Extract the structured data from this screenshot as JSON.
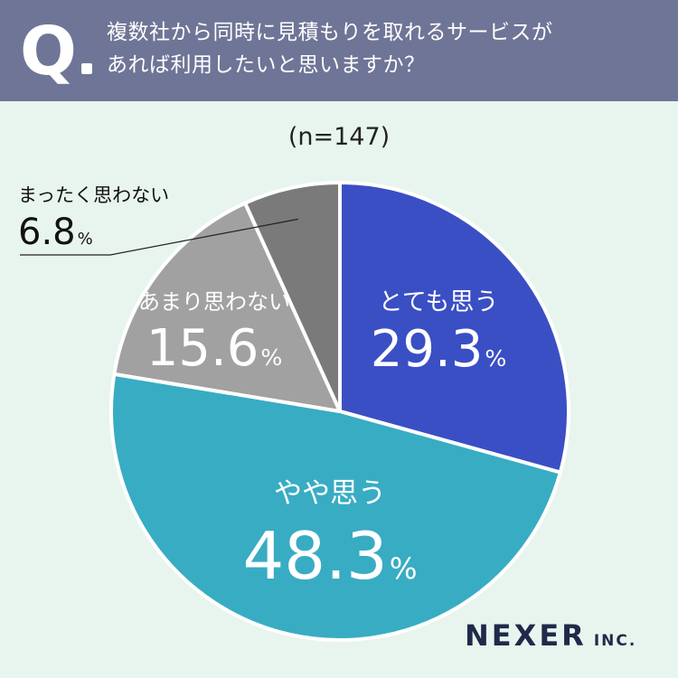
{
  "header": {
    "q_letter": "Q",
    "question_line1": "複数社から同時に見積もりを取れるサービスが",
    "question_line2": "あれば利用したいと思いますか？"
  },
  "sample_size": "(n=147)",
  "chart_data": {
    "type": "pie",
    "title": "複数社から同時に見積もりを取れるサービスがあれば利用したいと思いますか？",
    "n": 147,
    "start_angle_deg": 0,
    "direction": "clockwise",
    "slices": [
      {
        "label": "とても思う",
        "value": 29.3,
        "display": "29.3",
        "color": "#3a4fc4"
      },
      {
        "label": "やや思う",
        "value": 48.3,
        "display": "48.3",
        "color": "#38acc3"
      },
      {
        "label": "あまり思わない",
        "value": 15.6,
        "display": "15.6",
        "color": "#a1a1a1"
      },
      {
        "label": "まったく思わない",
        "value": 6.8,
        "display": "6.8",
        "color": "#7a7a7a"
      }
    ],
    "unit": "%"
  },
  "logo": {
    "main": "NEXER",
    "suffix": "INC."
  }
}
